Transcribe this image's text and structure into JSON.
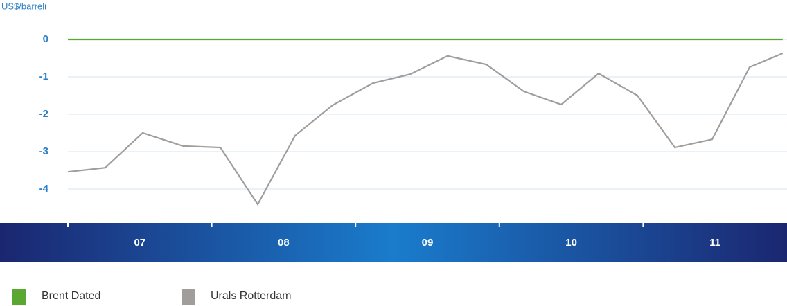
{
  "chart_data": {
    "type": "line",
    "y_label": "US$/barreli",
    "x": [
      2007.0,
      2007.26,
      2007.52,
      2007.8,
      2008.06,
      2008.32,
      2008.58,
      2008.84,
      2009.12,
      2009.38,
      2009.64,
      2009.91,
      2010.17,
      2010.43,
      2010.69,
      2010.96,
      2011.22,
      2011.48,
      2011.74,
      2011.97
    ],
    "series": [
      {
        "name": "Brent Dated",
        "color": "#5aa832",
        "values": [
          0,
          0,
          0,
          0,
          0,
          0,
          0,
          0,
          0,
          0,
          0,
          0,
          0,
          0,
          0,
          0,
          0,
          0,
          0,
          0
        ]
      },
      {
        "name": "Urals Rotterdam",
        "color": "#a09d9b",
        "values": [
          -3.54,
          -3.43,
          -2.5,
          -2.85,
          -2.89,
          -4.41,
          -2.57,
          -1.76,
          -1.17,
          -0.93,
          -0.44,
          -0.67,
          -1.39,
          -1.74,
          -0.91,
          -1.5,
          -2.89,
          -2.67,
          -0.74,
          -0.37
        ]
      }
    ],
    "xlim": [
      2007,
      2012
    ],
    "xticks": [
      2007,
      2008,
      2009,
      2010,
      2011
    ],
    "year_labels": [
      "07",
      "08",
      "09",
      "10",
      "11"
    ],
    "ylim": [
      -4.6,
      0.2
    ],
    "yticks": [
      0,
      -1,
      -2,
      -3,
      -4
    ],
    "grid": true
  }
}
